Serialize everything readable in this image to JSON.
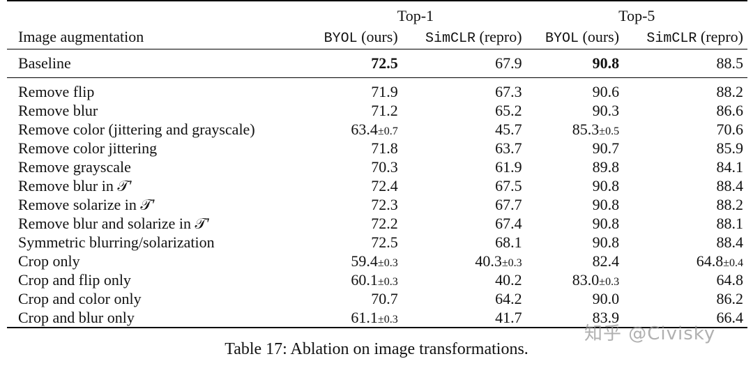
{
  "table": {
    "group_headers": {
      "top1": "Top-1",
      "top5": "Top-5"
    },
    "column_headers": {
      "row_label": "Image augmentation",
      "byol_top1": "BYOL (ours)",
      "simclr_top1": "SimCLR (repro)",
      "byol_top5": "BYOL (ours)",
      "simclr_top5": "SimCLR (repro)"
    },
    "baseline": {
      "label": "Baseline",
      "v1": "72.5",
      "v2": "67.9",
      "v3": "90.8",
      "v4": "88.5"
    },
    "rows": [
      {
        "label": "Remove flip",
        "v1": "71.9",
        "v2": "67.3",
        "v3": "90.6",
        "v4": "88.2"
      },
      {
        "label": "Remove blur",
        "v1": "71.2",
        "v2": "65.2",
        "v3": "90.3",
        "v4": "86.6"
      },
      {
        "label": "Remove color (jittering and grayscale)",
        "v1": "63.4",
        "v1_pm": "±0.7",
        "v2": "45.7",
        "v3": "85.3",
        "v3_pm": "±0.5",
        "v4": "70.6"
      },
      {
        "label": "Remove color jittering",
        "v1": "71.8",
        "v2": "63.7",
        "v3": "90.7",
        "v4": "85.9"
      },
      {
        "label": "Remove grayscale",
        "v1": "70.3",
        "v2": "61.9",
        "v3": "89.8",
        "v4": "84.1"
      },
      {
        "label": "Remove blur in 𝒯′",
        "v1": "72.4",
        "v2": "67.5",
        "v3": "90.8",
        "v4": "88.4"
      },
      {
        "label": "Remove solarize in 𝒯′",
        "v1": "72.3",
        "v2": "67.7",
        "v3": "90.8",
        "v4": "88.2"
      },
      {
        "label": "Remove blur and solarize in 𝒯′",
        "v1": "72.2",
        "v2": "67.4",
        "v3": "90.8",
        "v4": "88.1"
      },
      {
        "label": "Symmetric blurring/solarization",
        "v1": "72.5",
        "v2": "68.1",
        "v3": "90.8",
        "v4": "88.4"
      },
      {
        "label": "Crop only",
        "v1": "59.4",
        "v1_pm": "±0.3",
        "v2": "40.3",
        "v2_pm": "±0.3",
        "v3": "82.4",
        "v4": "64.8",
        "v4_pm": "±0.4"
      },
      {
        "label": "Crop and flip only",
        "v1": "60.1",
        "v1_pm": "±0.3",
        "v2": "40.2",
        "v3": "83.0",
        "v3_pm": "±0.3",
        "v4": "64.8"
      },
      {
        "label": "Crop and color only",
        "v1": "70.7",
        "v2": "64.2",
        "v3": "90.0",
        "v4": "86.2"
      },
      {
        "label": "Crop and blur only",
        "v1": "61.1",
        "v1_pm": "±0.3",
        "v2": "41.7",
        "v3": "83.9",
        "v4": "66.4"
      }
    ]
  },
  "caption": "Table 17: Ablation on image transformations.",
  "watermark": "知乎 @Civisky"
}
